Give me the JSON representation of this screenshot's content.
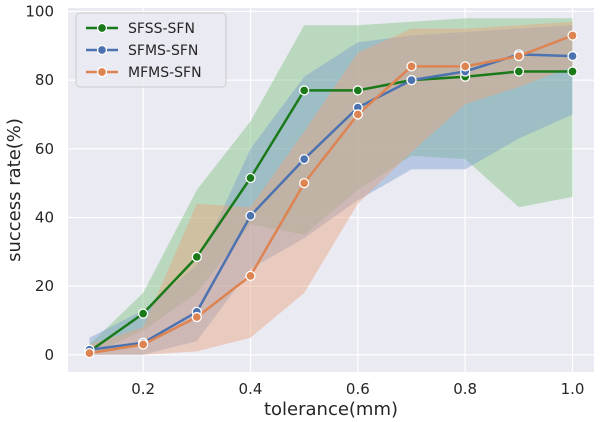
{
  "chart_data": {
    "type": "line",
    "title": "",
    "xlabel": "tolerance(mm)",
    "ylabel": "success rate(%)",
    "xlim": [
      0.06,
      1.04
    ],
    "ylim": [
      -5,
      101
    ],
    "x_ticks": [
      0.2,
      0.4,
      0.6,
      0.8,
      1.0
    ],
    "x_tick_labels": [
      "0.2",
      "0.4",
      "0.6",
      "0.8",
      "1.0"
    ],
    "y_ticks": [
      0,
      20,
      40,
      60,
      80,
      100
    ],
    "y_tick_labels": [
      "0",
      "20",
      "40",
      "60",
      "80",
      "100"
    ],
    "grid": true,
    "legend_position": "top-left",
    "x": [
      0.1,
      0.2,
      0.3,
      0.4,
      0.5,
      0.6,
      0.7,
      0.8,
      0.9,
      1.0
    ],
    "series": [
      {
        "name": "SFSS-SFN",
        "color": "#1a7a1a",
        "band_color": "#7fc47f",
        "values": [
          1,
          12,
          28.5,
          51.5,
          77,
          77,
          80,
          81,
          82.5,
          82.5
        ],
        "lower": [
          0,
          7,
          18,
          38,
          35,
          48,
          58,
          57,
          43,
          46
        ],
        "upper": [
          3,
          18,
          48,
          68,
          96,
          96,
          97,
          98,
          98,
          98
        ]
      },
      {
        "name": "SFMS-SFN",
        "color": "#4c72b0",
        "band_color": "#7f9fcf",
        "values": [
          1.5,
          3.5,
          12.5,
          40.5,
          57,
          72,
          80,
          82.5,
          87.5,
          87
        ],
        "lower": [
          0,
          0,
          4,
          25,
          34,
          45,
          54,
          54,
          63,
          70
        ],
        "upper": [
          5,
          13,
          26,
          60,
          81,
          91,
          93,
          94,
          95,
          96
        ]
      },
      {
        "name": "MFMS-SFN",
        "color": "#dd8452",
        "band_color": "#e8a57f",
        "values": [
          0.5,
          3,
          11,
          23,
          50,
          70,
          84,
          84,
          87,
          93
        ],
        "lower": [
          0,
          0,
          1,
          5,
          18,
          44,
          59,
          73,
          78,
          84
        ],
        "upper": [
          3,
          8,
          44,
          43,
          65,
          88,
          95,
          95,
          96,
          97
        ]
      }
    ]
  }
}
